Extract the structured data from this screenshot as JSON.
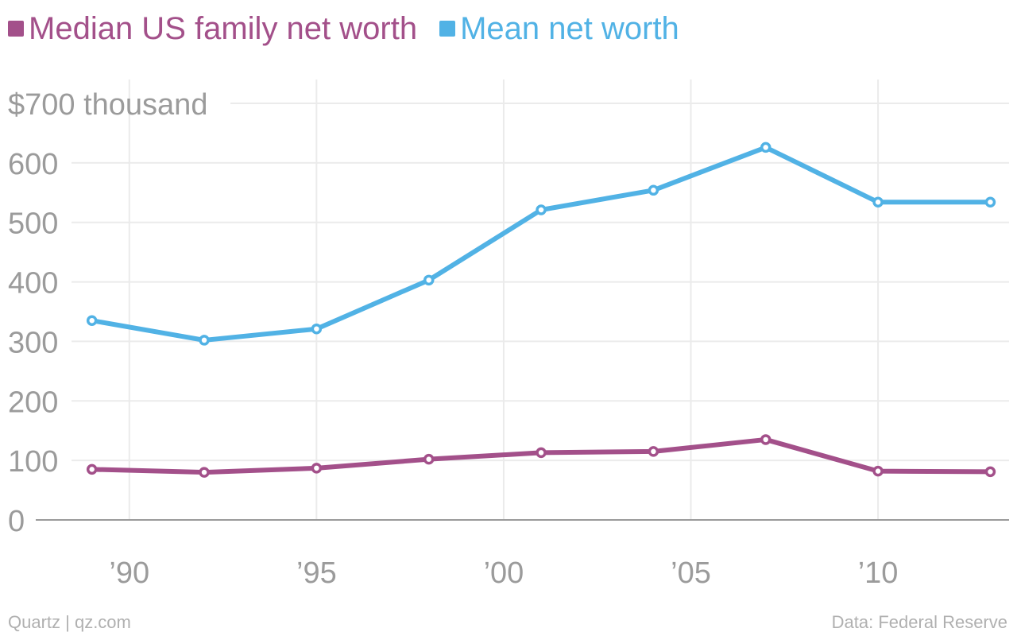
{
  "legend": {
    "median_label": "Median US family net worth",
    "mean_label": "Mean net worth"
  },
  "colors": {
    "median": "#a3508a",
    "mean": "#51b2e5",
    "grid": "#ebebeb",
    "axis": "#9a9a9a",
    "tick_text": "#9b9b9b"
  },
  "footer": {
    "source_left": "Quartz | qz.com",
    "source_right": "Data: Federal Reserve"
  },
  "chart_data": {
    "type": "line",
    "x": [
      1989,
      1992,
      1995,
      1998,
      2001,
      2004,
      2007,
      2010,
      2013
    ],
    "series": [
      {
        "name": "Median US family net worth",
        "values": [
          85,
          80,
          87,
          102,
          113,
          115,
          135,
          82,
          81
        ]
      },
      {
        "name": "Mean net worth",
        "values": [
          335,
          302,
          321,
          403,
          521,
          554,
          626,
          534,
          534
        ]
      }
    ],
    "ylim": [
      0,
      700
    ],
    "xlim": [
      1987.5,
      2013.5
    ],
    "yticks": [
      0,
      100,
      200,
      300,
      400,
      500,
      600,
      700
    ],
    "ytick_labels": [
      "0",
      "100",
      "200",
      "300",
      "400",
      "500",
      "600",
      "$700 thousand"
    ],
    "xticks": [
      1990,
      1995,
      2000,
      2005,
      2010
    ],
    "xtick_labels": [
      "’90",
      "’95",
      "’00",
      "’05",
      "’10"
    ],
    "grid": true,
    "legend_position": "top-left"
  }
}
